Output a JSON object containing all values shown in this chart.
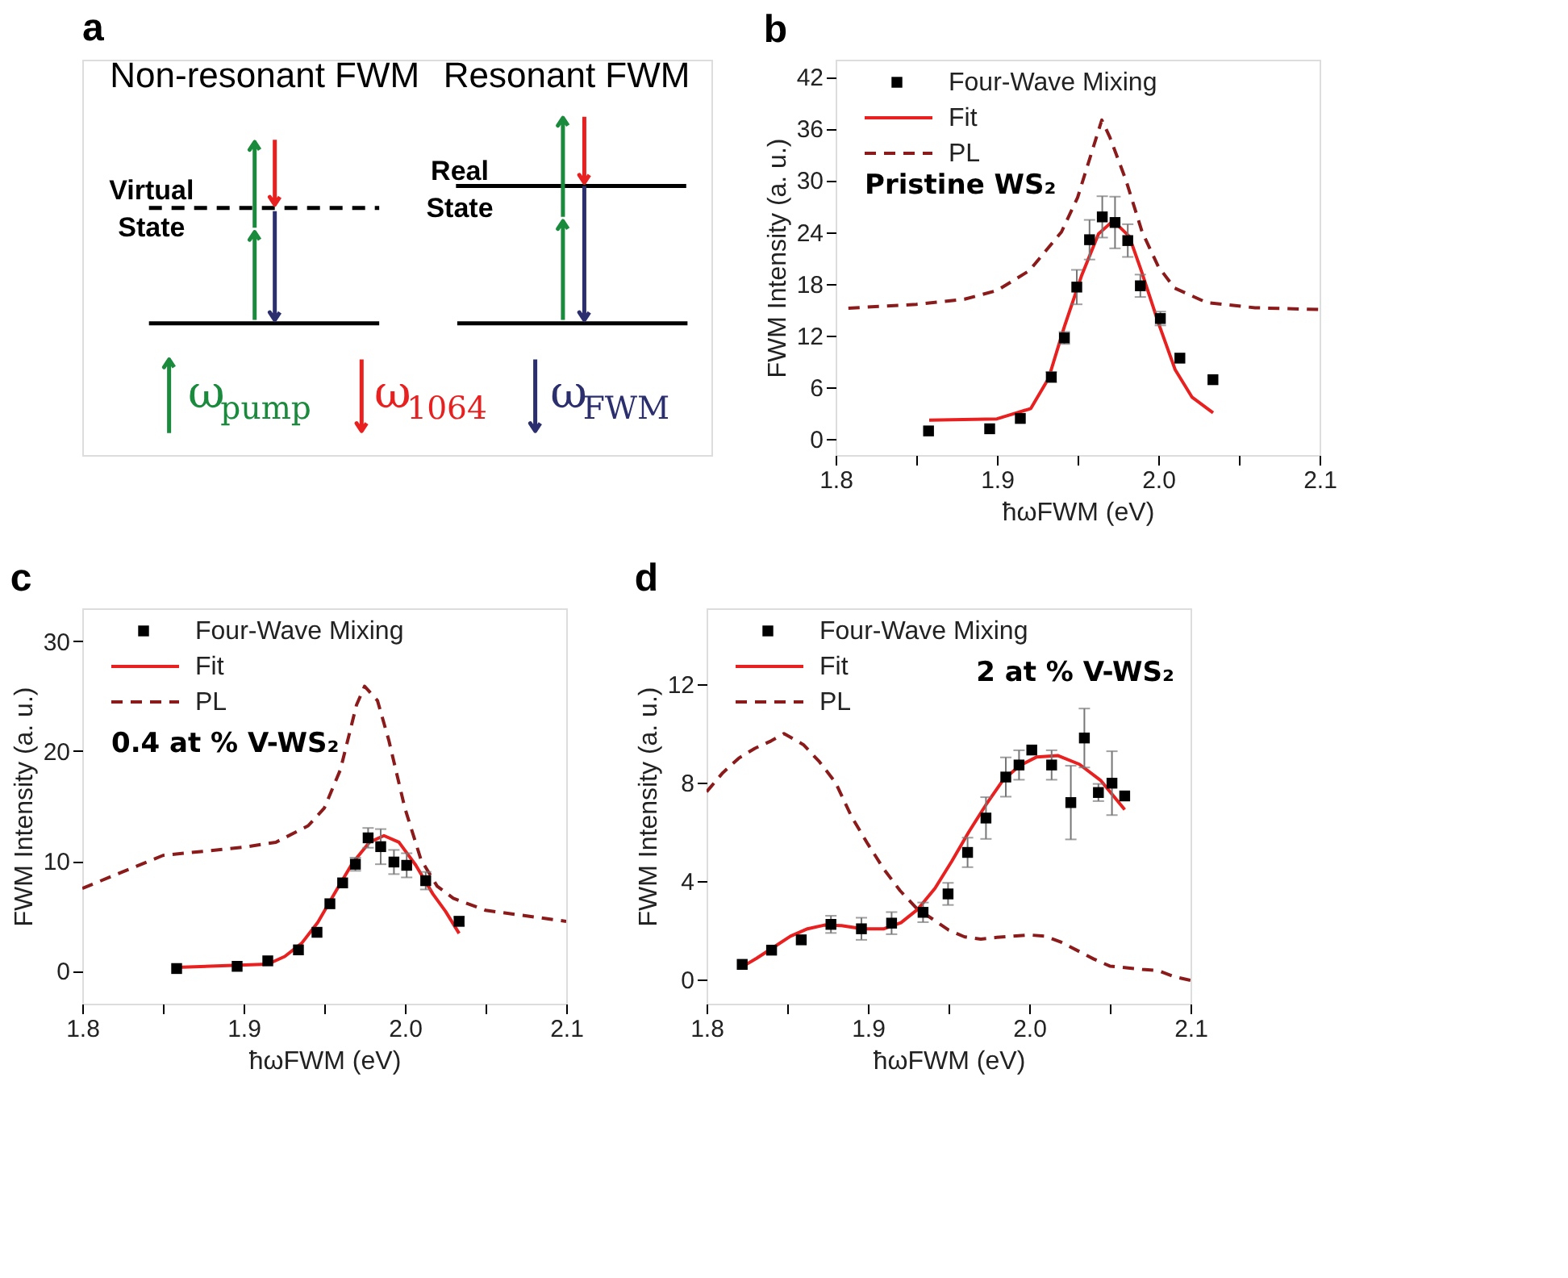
{
  "chart_data": [
    {
      "type": "other",
      "title": "a",
      "annotations": [
        "Non-resonant FWM",
        "Resonant FWM",
        "Virtual State",
        "Real State",
        "ω$_{pump}$",
        "ω$_{1064}$",
        "ω$_{FWM}$"
      ]
    },
    {
      "type": "line",
      "title": "b",
      "xlabel": "ħωFWM (eV)",
      "ylabel": "FWM Intensity (a. u.)",
      "annotations": [
        "Pristine WS₂"
      ],
      "legend": "top left",
      "grid": false,
      "xlim": [
        1.8,
        2.1
      ],
      "xticks": [
        1.8,
        {
          "value": 1.85,
          "label": null
        },
        1.9,
        {
          "value": 1.95,
          "label": null
        },
        {
          "value": 2.0,
          "label": "2.0"
        },
        {
          "value": 2.05,
          "label": null
        },
        2.1
      ],
      "ylim": [
        -1.9,
        44
      ],
      "yticks": [
        0,
        6,
        12,
        18,
        24,
        30,
        36,
        42
      ],
      "series": [
        {
          "name": "Four-Wave Mixing",
          "type": "scatter",
          "marker": "square",
          "color": "#000000",
          "x": [
            1.8576,
            1.8955,
            1.9145,
            1.9337,
            1.9418,
            1.9495,
            1.9574,
            1.9653,
            1.9732,
            1.9811,
            1.9889,
            2.0013,
            2.0134,
            2.0339
          ],
          "values": [
            0.9,
            1.15,
            2.35,
            7.15,
            11.7,
            17.6,
            23.1,
            25.75,
            25.1,
            23.0,
            17.75,
            13.95,
            9.35,
            6.85
          ],
          "errors": [
            null,
            null,
            null,
            0.6,
            0.7,
            2,
            2.3,
            2.4,
            3,
            1.9,
            1.3,
            0.8,
            null,
            null
          ]
        },
        {
          "name": "Fit",
          "type": "line",
          "line_style": "solid",
          "color": "#e8201f",
          "x": [
            1.858,
            1.9,
            1.921,
            1.932,
            1.9418,
            1.9526,
            1.963,
            1.972,
            1.982,
            1.9895,
            2.0,
            2.0105,
            2.021,
            2.034
          ],
          "values": [
            2.15,
            2.3,
            3.5,
            7,
            13,
            19,
            23.8,
            25.3,
            23.5,
            19.5,
            13.5,
            8,
            4.8,
            3.0
          ]
        },
        {
          "name": "PL",
          "type": "line",
          "line_style": "dashed",
          "color": "#8b1a1a",
          "x": [
            1.8079,
            1.85,
            1.88,
            1.9,
            1.92,
            1.94,
            1.95,
            1.96,
            1.965,
            1.97,
            1.98,
            1.99,
            2.0,
            2.01,
            2.03,
            2.06,
            2.1
          ],
          "values": [
            15.15,
            15.6,
            16.2,
            17.2,
            19.5,
            24,
            28,
            34,
            37,
            35,
            30,
            24,
            20,
            17.5,
            15.8,
            15.2,
            15.0
          ]
        }
      ]
    },
    {
      "type": "line",
      "title": "c",
      "xlabel": "ħωFWM (eV)",
      "ylabel": "FWM Intensity (a. u.)",
      "annotations": [
        "0.4 at % V-WS₂"
      ],
      "legend": "top left",
      "grid": false,
      "xlim": [
        1.8,
        2.1
      ],
      "xticks": [
        1.8,
        {
          "value": 1.85,
          "label": null
        },
        1.9,
        {
          "value": 1.95,
          "label": null
        },
        {
          "value": 2.0,
          "label": "2.0"
        },
        {
          "value": 2.05,
          "label": null
        },
        2.1
      ],
      "ylim": [
        -3,
        33
      ],
      "yticks": [
        0,
        10,
        20,
        30
      ],
      "series": [
        {
          "name": "Four-Wave Mixing",
          "type": "scatter",
          "marker": "square",
          "color": "#000000",
          "x": [
            1.8585,
            1.896,
            1.915,
            1.934,
            1.9455,
            1.9535,
            1.9614,
            1.9693,
            1.9772,
            1.985,
            1.9932,
            2.0011,
            2.0129,
            2.0336
          ],
          "values": [
            0.2,
            0.4,
            0.9,
            1.9,
            3.5,
            6.1,
            8.0,
            9.7,
            12.1,
            11.3,
            9.9,
            9.6,
            8.2,
            4.5
          ],
          "errors": [
            null,
            null,
            null,
            null,
            null,
            null,
            null,
            0.6,
            0.9,
            1.6,
            1.1,
            1.1,
            0.8,
            0.4
          ]
        },
        {
          "name": "Fit",
          "type": "line",
          "line_style": "solid",
          "color": "#e8201f",
          "x": [
            1.8585,
            1.915,
            1.9255,
            1.936,
            1.946,
            1.957,
            1.9675,
            1.978,
            1.987,
            1.9963,
            2.0068,
            2.0173,
            2.0252,
            2.0336
          ],
          "values": [
            0.3,
            0.6,
            1.3,
            2.5,
            4.4,
            7.2,
            9.8,
            11.7,
            12.3,
            11.7,
            9.6,
            7.0,
            5.4,
            3.4
          ]
        },
        {
          "name": "PL",
          "type": "line",
          "line_style": "dashed",
          "color": "#8b1a1a",
          "x": [
            1.8,
            1.85,
            1.9,
            1.92,
            1.94,
            1.95,
            1.96,
            1.97,
            1.975,
            1.983,
            1.99,
            2.0,
            2.01,
            2.02,
            2.03,
            2.05,
            2.1
          ],
          "values": [
            7.5,
            10.5,
            11.25,
            11.7,
            13.2,
            14.8,
            18.3,
            24.2,
            25.9,
            24.6,
            21,
            14.8,
            10.1,
            7.7,
            6.6,
            5.5,
            4.5
          ]
        }
      ]
    },
    {
      "type": "line",
      "title": "d",
      "xlabel": "ħωFWM (eV)",
      "ylabel": "FWM Intensity (a. u.)",
      "annotations": [
        "2 at % V-WS₂"
      ],
      "legend": "top left",
      "grid": false,
      "xlim": [
        1.8,
        2.1
      ],
      "xticks": [
        1.8,
        {
          "value": 1.85,
          "label": null
        },
        1.9,
        {
          "value": 1.95,
          "label": null
        },
        {
          "value": 2.0,
          "label": "2.0"
        },
        {
          "value": 2.05,
          "label": null
        },
        2.1
      ],
      "ylim": [
        -1,
        15.1
      ],
      "yticks": [
        0,
        4,
        8,
        12
      ],
      "series": [
        {
          "name": "Four-Wave Mixing",
          "type": "scatter",
          "marker": "square",
          "color": "#000000",
          "x": [
            1.8221,
            1.8403,
            1.8587,
            1.8771,
            1.896,
            1.9147,
            1.9342,
            1.9497,
            1.9618,
            1.9732,
            1.9855,
            1.9937,
            2.0016,
            2.0139,
            2.0258,
            2.0342,
            2.0429,
            2.0513,
            2.0592
          ],
          "values": [
            0.6,
            1.18,
            1.6,
            2.23,
            2.05,
            2.28,
            2.72,
            3.47,
            5.16,
            6.56,
            8.23,
            8.72,
            9.33,
            8.72,
            7.19,
            9.82,
            7.6,
            7.98,
            7.46
          ],
          "errors": [
            null,
            null,
            null,
            0.35,
            0.45,
            0.45,
            0.4,
            0.45,
            0.6,
            0.85,
            0.8,
            0.6,
            null,
            0.6,
            1.5,
            1.2,
            0.35,
            1.3,
            null
          ]
        },
        {
          "name": "Fit",
          "type": "line",
          "line_style": "solid",
          "color": "#e8201f",
          "x": [
            1.822,
            1.831,
            1.8416,
            1.852,
            1.8626,
            1.873,
            1.8837,
            1.8968,
            1.91,
            1.9205,
            1.931,
            1.9416,
            1.952,
            1.9626,
            1.9732,
            1.9837,
            1.9942,
            2.0047,
            2.0179,
            2.0311,
            2.0442,
            2.0592
          ],
          "values": [
            0.5,
            0.85,
            1.3,
            1.75,
            2.05,
            2.2,
            2.18,
            2.05,
            2.05,
            2.3,
            2.85,
            3.7,
            4.8,
            6.0,
            7.1,
            8.1,
            8.7,
            9.05,
            9.1,
            8.75,
            8.1,
            6.9
          ]
        },
        {
          "name": "PL",
          "type": "line",
          "line_style": "dashed",
          "color": "#8b1a1a",
          "x": [
            1.8,
            1.81,
            1.82,
            1.83,
            1.84,
            1.848,
            1.86,
            1.87,
            1.88,
            1.89,
            1.9,
            1.91,
            1.92,
            1.93,
            1.94,
            1.95,
            1.96,
            1.97,
            1.98,
            2.0,
            2.01,
            2.02,
            2.04,
            2.05,
            2.07,
            2.08,
            2.09,
            2.1
          ],
          "values": [
            7.63,
            8.4,
            9.0,
            9.4,
            9.7,
            10.0,
            9.55,
            8.85,
            8.0,
            6.6,
            5.5,
            4.47,
            3.6,
            2.9,
            2.45,
            2.0,
            1.72,
            1.63,
            1.7,
            1.8,
            1.75,
            1.5,
            0.82,
            0.53,
            0.4,
            0.35,
            0.1,
            -0.05
          ]
        }
      ]
    }
  ]
}
